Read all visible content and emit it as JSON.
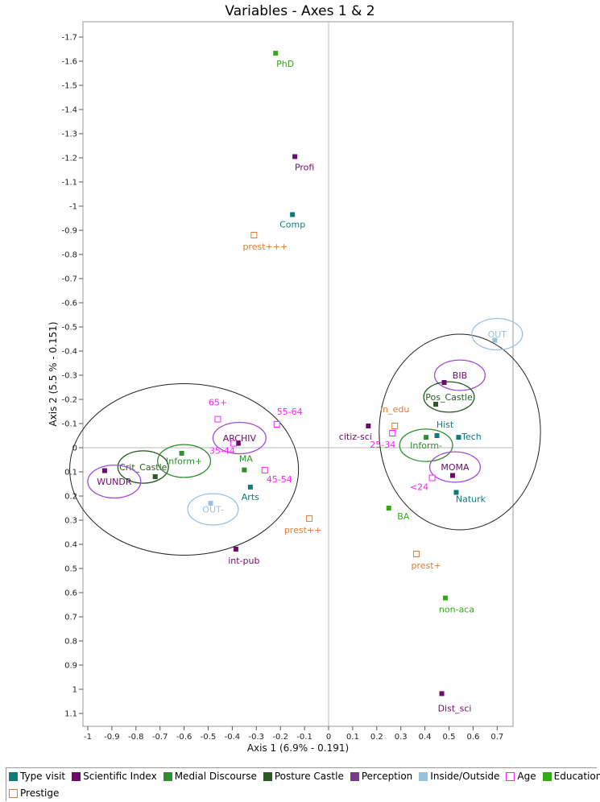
{
  "chart_data": {
    "type": "scatter",
    "title": "Variables - Axes 1 & 2",
    "xlabel": "Axis 1 (6.9% - 0.191)",
    "ylabel": "Axis 2 (5.5 % - 0.151)",
    "xlim": [
      -1.0,
      0.75
    ],
    "ylim": [
      1.18,
      -1.76
    ],
    "y_reversed": true,
    "xticks": [
      "-1",
      "-0.9",
      "-0.8",
      "-0.7",
      "-0.6",
      "-0.5",
      "-0.4",
      "-0.3",
      "-0.2",
      "-0.1",
      "0",
      "0.1",
      "0.2",
      "0.3",
      "0.4",
      "0.5",
      "0.6",
      "0.7"
    ],
    "yticks": [
      "-1.7",
      "-1.6",
      "-1.5",
      "-1.4",
      "-1.3",
      "-1.2",
      "-1.1",
      "-1",
      "-0.9",
      "-0.8",
      "-0.7",
      "-0.6",
      "-0.5",
      "-0.4",
      "-0.3",
      "-0.2",
      "-0.1",
      "0",
      "0.1",
      "0.2",
      "0.3",
      "0.4",
      "0.5",
      "0.6",
      "0.7",
      "0.8",
      "0.9",
      "1",
      "1.1"
    ],
    "grid": false,
    "legend_position": "bottom",
    "series": [
      {
        "name": "Type visit",
        "color": "#0e7a7a",
        "marker": "filled",
        "points": [
          {
            "label": "Comp",
            "x": -0.15,
            "y": -0.965
          },
          {
            "label": "Arts",
            "x": -0.325,
            "y": 0.163
          },
          {
            "label": "Hist",
            "x": 0.45,
            "y": -0.05
          },
          {
            "label": "Tech",
            "x": 0.54,
            "y": -0.043
          },
          {
            "label": "Naturk",
            "x": 0.53,
            "y": 0.185
          }
        ]
      },
      {
        "name": "Scientific Index",
        "color": "#6e0a6e",
        "marker": "filled",
        "points": [
          {
            "label": "Profi",
            "x": -0.14,
            "y": -1.205
          },
          {
            "label": "citiz-sci",
            "x": 0.165,
            "y": -0.09
          },
          {
            "label": "int-pub",
            "x": -0.385,
            "y": 0.42
          },
          {
            "label": "Dist_sci",
            "x": 0.47,
            "y": 1.018
          },
          {
            "label": "",
            "x": -0.93,
            "y": 0.095
          },
          {
            "label": "",
            "x": 0.515,
            "y": 0.115
          },
          {
            "label": "",
            "x": -0.375,
            "y": -0.018
          },
          {
            "label": "",
            "x": 0.48,
            "y": -0.27
          }
        ]
      },
      {
        "name": "Medial Discourse",
        "color": "#2f8f2f",
        "marker": "filled",
        "points": [
          {
            "label": "MA",
            "x": -0.35,
            "y": 0.092
          },
          {
            "label": "",
            "x": -0.61,
            "y": 0.023
          },
          {
            "label": "",
            "x": 0.405,
            "y": -0.043
          }
        ]
      },
      {
        "name": "Posture Castle",
        "color": "#2a5a25",
        "marker": "filled",
        "points": [
          {
            "label": "",
            "x": -0.72,
            "y": 0.12
          },
          {
            "label": "",
            "x": 0.445,
            "y": -0.18
          }
        ]
      },
      {
        "name": "Perception",
        "color": "#7a3a8c",
        "marker": "filled",
        "points": []
      },
      {
        "name": "Inside/Outside",
        "color": "#9bc2dc",
        "marker": "filled",
        "points": [
          {
            "label": "",
            "x": -0.49,
            "y": 0.23
          },
          {
            "label": "",
            "x": 0.69,
            "y": -0.445
          }
        ]
      },
      {
        "name": "Age",
        "color": "#ff22ff",
        "marker": "hollow",
        "points": [
          {
            "label": "65+",
            "x": -0.46,
            "y": -0.118
          },
          {
            "label": "35-44",
            "x": -0.395,
            "y": -0.018
          },
          {
            "label": "55-64",
            "x": -0.215,
            "y": -0.097
          },
          {
            "label": "45-54",
            "x": -0.265,
            "y": 0.093
          },
          {
            "label": "25-34",
            "x": 0.265,
            "y": -0.06
          },
          {
            "label": "<24",
            "x": 0.43,
            "y": 0.125
          }
        ]
      },
      {
        "name": "Education",
        "color": "#33aa11",
        "marker": "filled",
        "points": [
          {
            "label": "PhD",
            "x": -0.22,
            "y": -1.633
          },
          {
            "label": "BA",
            "x": 0.25,
            "y": 0.25
          },
          {
            "label": "non-aca",
            "x": 0.485,
            "y": 0.622
          }
        ]
      },
      {
        "name": "Prestige",
        "color": "#e07a33",
        "marker": "hollow",
        "points": [
          {
            "label": "prest+++",
            "x": -0.31,
            "y": -0.88
          },
          {
            "label": "in_edu",
            "x": 0.275,
            "y": -0.09
          },
          {
            "label": "prest++",
            "x": -0.08,
            "y": 0.293
          },
          {
            "label": "prest+",
            "x": 0.365,
            "y": 0.44
          }
        ]
      }
    ],
    "ellipse_labels": [
      {
        "label": "Crit_Castle",
        "series": "Posture Castle",
        "x": -0.77,
        "y": 0.08
      },
      {
        "label": "Inform+",
        "series": "Medial Discourse",
        "x": -0.6,
        "y": 0.055
      },
      {
        "label": "ARCHIV",
        "series": "Scientific Index",
        "x": -0.37,
        "y": -0.04
      },
      {
        "label": "WUNDR",
        "series": "Scientific Index",
        "x": -0.89,
        "y": 0.14
      },
      {
        "label": "OUT-",
        "series": "Inside/Outside",
        "x": -0.48,
        "y": 0.255
      },
      {
        "label": "OUT",
        "series": "Inside/Outside",
        "x": 0.7,
        "y": -0.47
      },
      {
        "label": "BIB",
        "series": "Scientific Index",
        "x": 0.545,
        "y": -0.3
      },
      {
        "label": "Pos_Castle",
        "series": "Posture Castle",
        "x": 0.5,
        "y": -0.21
      },
      {
        "label": "Inform-",
        "series": "Medial Discourse",
        "x": 0.405,
        "y": -0.01
      },
      {
        "label": "MOMA",
        "series": "Scientific Index",
        "x": 0.525,
        "y": 0.08
      }
    ]
  },
  "legend": {
    "row1": [
      {
        "label": "Type visit",
        "color": "#0e7a7a",
        "hollow": false
      },
      {
        "label": "Scientific Index",
        "color": "#6e0a6e",
        "hollow": false
      },
      {
        "label": "Medial Discourse",
        "color": "#2f8f2f",
        "hollow": false
      },
      {
        "label": "Posture Castle",
        "color": "#2a5a25",
        "hollow": false
      },
      {
        "label": "Perception",
        "color": "#7a3a8c",
        "hollow": false
      },
      {
        "label": "Inside/Outside",
        "color": "#9bc2dc",
        "hollow": false
      },
      {
        "label": "Age",
        "color": "#ff22ff",
        "hollow": true
      },
      {
        "label": "Education",
        "color": "#33aa11",
        "hollow": false
      }
    ],
    "row2": [
      {
        "label": "Prestige",
        "color": "#e07a33",
        "hollow": true
      }
    ]
  }
}
